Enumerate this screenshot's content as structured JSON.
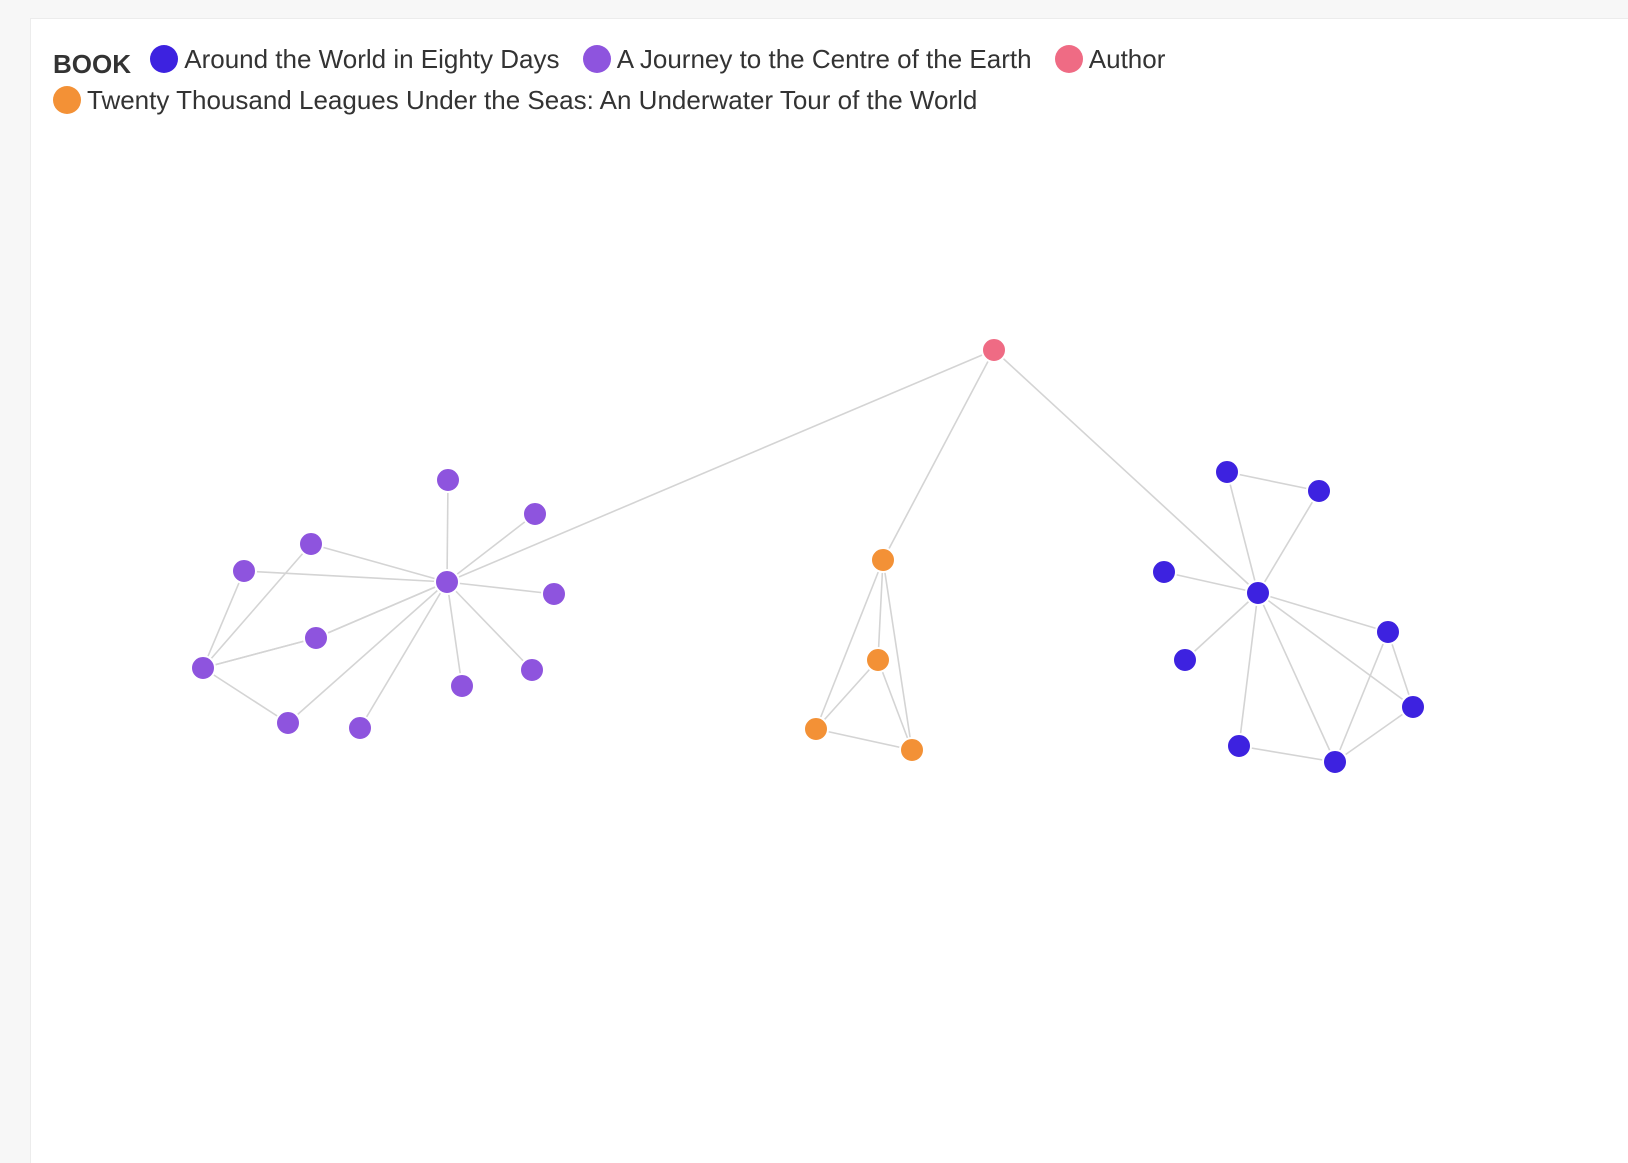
{
  "legend": {
    "title": "BOOK",
    "items": [
      {
        "key": "around",
        "label": "Around the World in Eighty Days",
        "color": "#3d22e0"
      },
      {
        "key": "journey",
        "label": "A Journey to the Centre of the Earth",
        "color": "#8e54de"
      },
      {
        "key": "author",
        "label": "Author",
        "color": "#ef6b84"
      },
      {
        "key": "twenty",
        "label": "Twenty Thousand Leagues Under the Seas: An Underwater Tour of the World",
        "color": "#f39136"
      }
    ]
  },
  "graph": {
    "nodes": [
      {
        "id": "author",
        "group": "author"
      },
      {
        "id": "j_hub",
        "group": "journey"
      },
      {
        "id": "j1",
        "group": "journey"
      },
      {
        "id": "j2",
        "group": "journey"
      },
      {
        "id": "j3",
        "group": "journey"
      },
      {
        "id": "j4",
        "group": "journey"
      },
      {
        "id": "j5",
        "group": "journey"
      },
      {
        "id": "j6",
        "group": "journey"
      },
      {
        "id": "j7",
        "group": "journey"
      },
      {
        "id": "j8",
        "group": "journey"
      },
      {
        "id": "j9",
        "group": "journey"
      },
      {
        "id": "j10",
        "group": "journey"
      },
      {
        "id": "j11",
        "group": "journey"
      },
      {
        "id": "j12",
        "group": "journey"
      },
      {
        "id": "t_hub",
        "group": "twenty"
      },
      {
        "id": "t1",
        "group": "twenty"
      },
      {
        "id": "t2",
        "group": "twenty"
      },
      {
        "id": "t3",
        "group": "twenty"
      },
      {
        "id": "a_hub",
        "group": "around"
      },
      {
        "id": "a1",
        "group": "around"
      },
      {
        "id": "a2",
        "group": "around"
      },
      {
        "id": "a3",
        "group": "around"
      },
      {
        "id": "a4",
        "group": "around"
      },
      {
        "id": "a5",
        "group": "around"
      },
      {
        "id": "a6",
        "group": "around"
      },
      {
        "id": "a7",
        "group": "around"
      },
      {
        "id": "a8",
        "group": "around"
      }
    ],
    "edges": [
      [
        "author",
        "j_hub"
      ],
      [
        "author",
        "t_hub"
      ],
      [
        "author",
        "a_hub"
      ],
      [
        "j_hub",
        "j1"
      ],
      [
        "j_hub",
        "j2"
      ],
      [
        "j_hub",
        "j3"
      ],
      [
        "j_hub",
        "j4"
      ],
      [
        "j_hub",
        "j5"
      ],
      [
        "j_hub",
        "j6"
      ],
      [
        "j_hub",
        "j7"
      ],
      [
        "j_hub",
        "j8"
      ],
      [
        "j_hub",
        "j9"
      ],
      [
        "j_hub",
        "j10"
      ],
      [
        "j_hub",
        "j11"
      ],
      [
        "j12",
        "j4"
      ],
      [
        "j12",
        "j5"
      ],
      [
        "j12",
        "j7"
      ],
      [
        "j12",
        "j10"
      ],
      [
        "j12",
        "j11"
      ],
      [
        "t_hub",
        "t1"
      ],
      [
        "t_hub",
        "t2"
      ],
      [
        "t_hub",
        "t3"
      ],
      [
        "t1",
        "t2"
      ],
      [
        "t1",
        "t3"
      ],
      [
        "t2",
        "t3"
      ],
      [
        "a_hub",
        "a1"
      ],
      [
        "a_hub",
        "a2"
      ],
      [
        "a_hub",
        "a3"
      ],
      [
        "a_hub",
        "a4"
      ],
      [
        "a_hub",
        "a5"
      ],
      [
        "a_hub",
        "a6"
      ],
      [
        "a_hub",
        "a7"
      ],
      [
        "a_hub",
        "a8"
      ],
      [
        "a1",
        "a2"
      ],
      [
        "a5",
        "a6"
      ],
      [
        "a5",
        "a8"
      ],
      [
        "a6",
        "a8"
      ],
      [
        "a7",
        "a8"
      ]
    ]
  }
}
